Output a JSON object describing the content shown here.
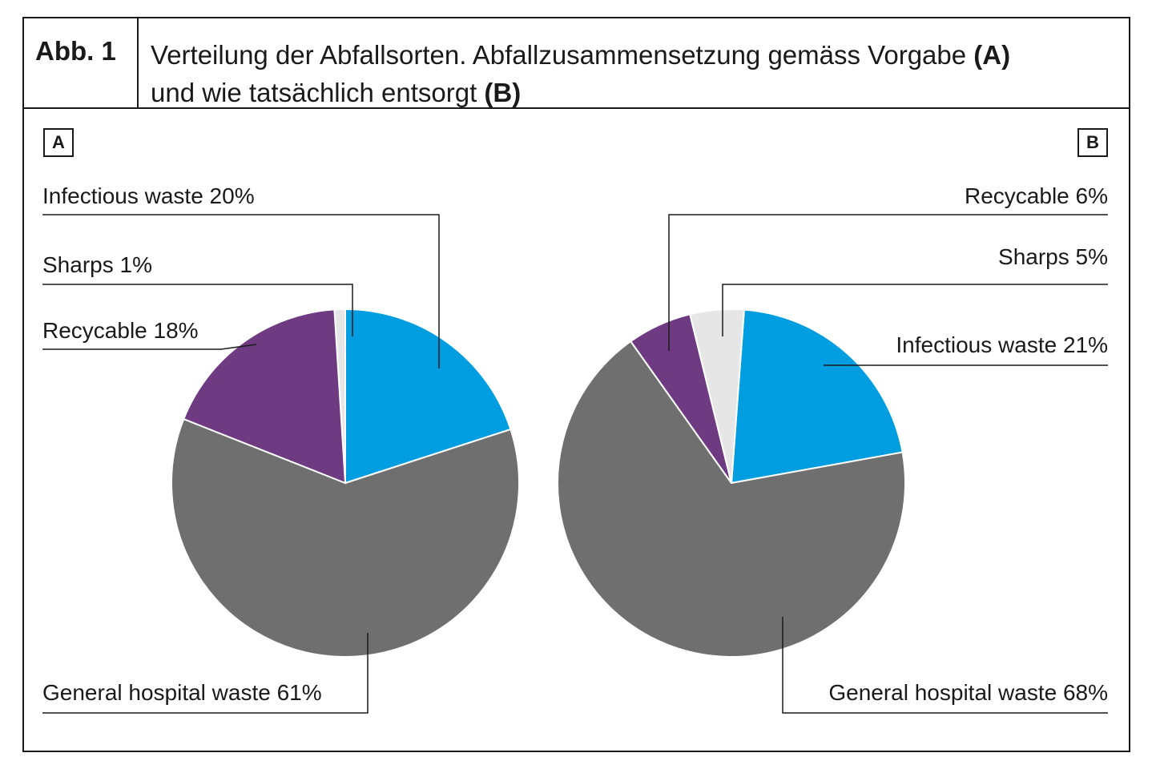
{
  "figure": {
    "label": "Abb. 1",
    "title_part1": "Verteilung der Abfallsorten. Abfallzusammensetzung gemäss Vorgabe ",
    "title_A": "(A)",
    "title_part2": "und wie tatsächlich entsorgt ",
    "title_B": "(B)"
  },
  "colors": {
    "infectious": "#009ee0",
    "sharps": "#e6e6e6",
    "recycable": "#6e3a82",
    "general": "#6f6f6f",
    "line": "#1a1a1a"
  },
  "chart_data": [
    {
      "type": "pie",
      "panel": "A",
      "slices": [
        {
          "name": "Sharps",
          "value": 1,
          "label": "Sharps 1%"
        },
        {
          "name": "Infectious waste",
          "value": 20,
          "label": "Infectious waste 20%"
        },
        {
          "name": "General hospital waste",
          "value": 61,
          "label": "General hospital waste 61%"
        },
        {
          "name": "Recycable",
          "value": 18,
          "label": "Recycable 18%"
        }
      ]
    },
    {
      "type": "pie",
      "panel": "B",
      "slices": [
        {
          "name": "Infectious waste",
          "value": 21,
          "label": "Infectious waste 21%"
        },
        {
          "name": "General hospital waste",
          "value": 68,
          "label": "General hospital waste 68%"
        },
        {
          "name": "Recycable",
          "value": 6,
          "label": "Recycable 6%"
        },
        {
          "name": "Sharps",
          "value": 5,
          "label": "Sharps 5%"
        }
      ]
    }
  ]
}
